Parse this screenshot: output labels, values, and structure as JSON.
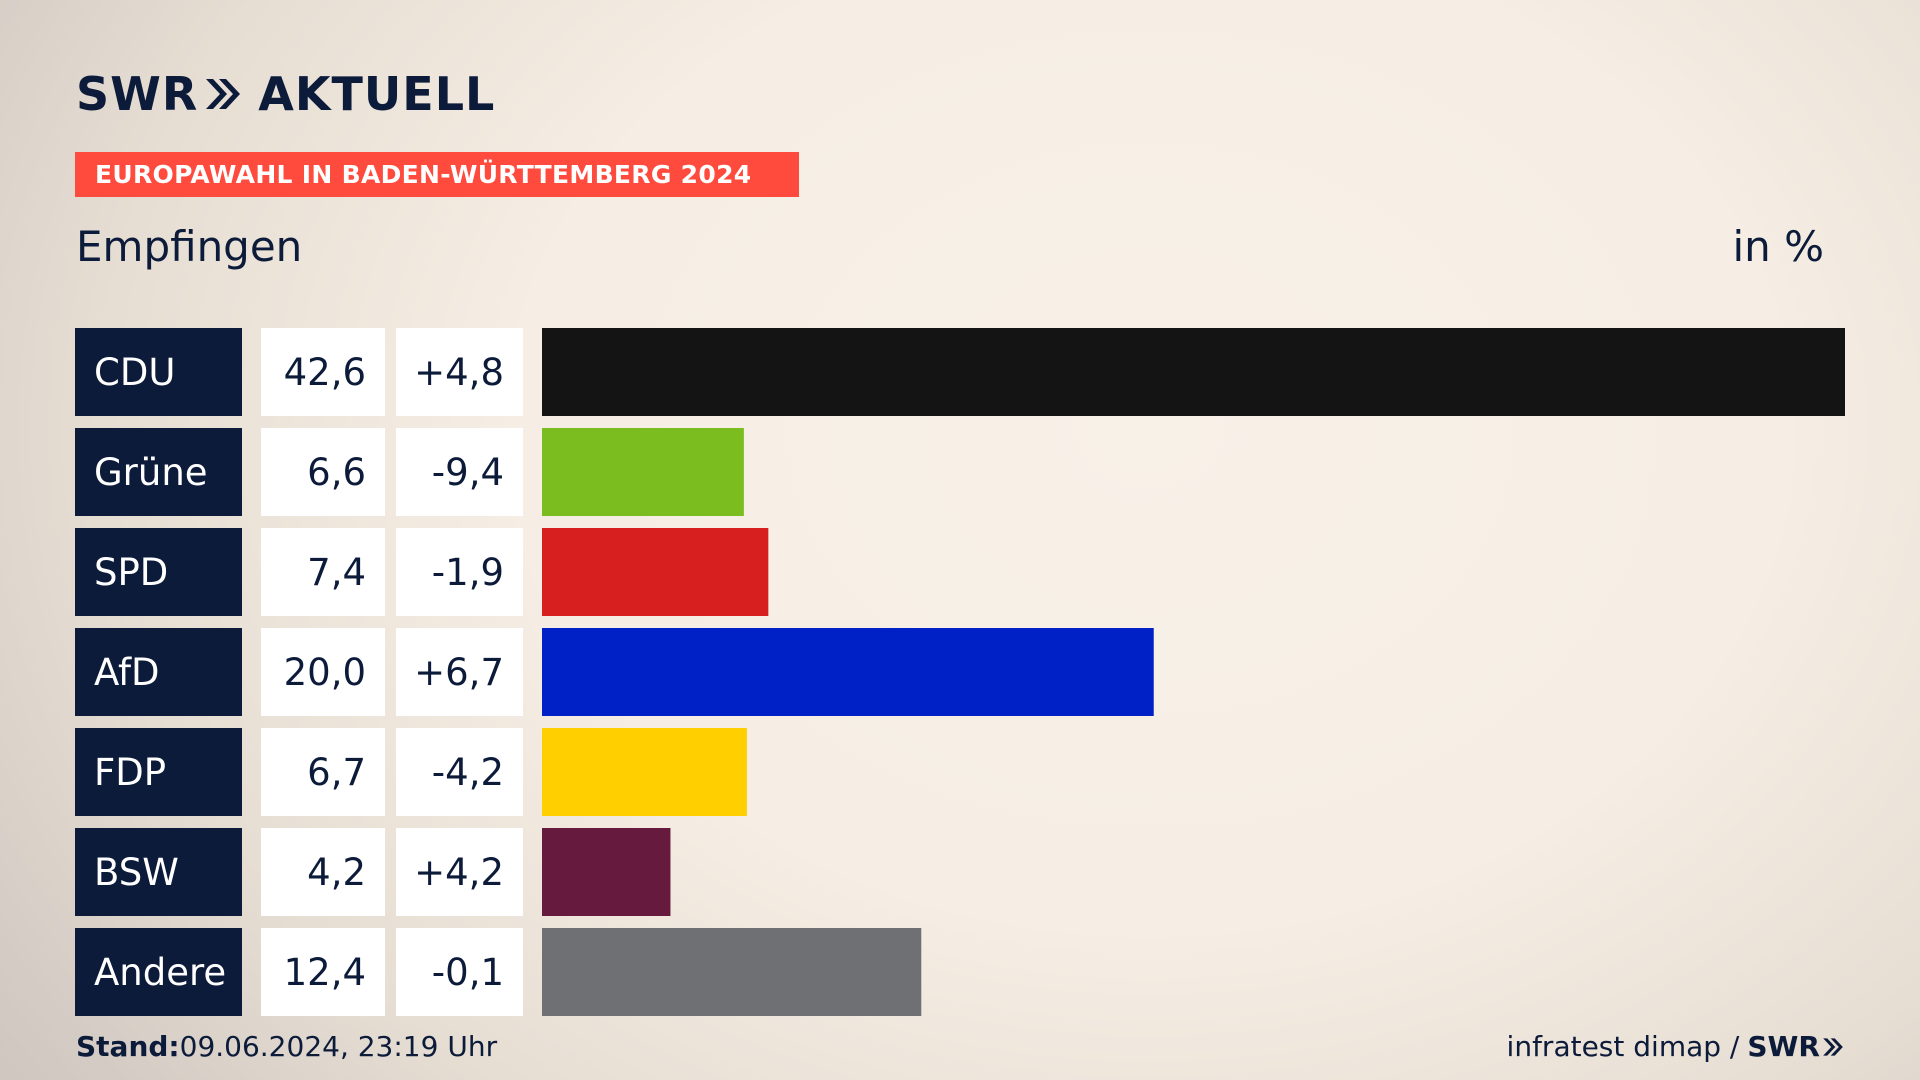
{
  "header": {
    "logo_text_1": "SWR",
    "logo_text_2": "AKTUELL",
    "banner": "EUROPAWAHL IN BADEN-WÜRTTEMBERG 2024",
    "place": "Empfingen",
    "unit": "in %"
  },
  "footer": {
    "stand_label": "Stand:",
    "stand_value": "09.06.2024, 23:19 Uhr",
    "source": "infratest dimap /",
    "source_logo": "SWR"
  },
  "colors": {
    "label_bg": "#0d1b3a",
    "cell_bg": "#ffffff",
    "banner": "#ff4a3e"
  },
  "chart_data": {
    "type": "bar",
    "orientation": "horizontal",
    "categories": [
      "CDU",
      "Grüne",
      "SPD",
      "AfD",
      "FDP",
      "BSW",
      "Andere"
    ],
    "values": [
      42.6,
      6.6,
      7.4,
      20.0,
      6.7,
      4.2,
      12.4
    ],
    "value_labels": [
      "42,6",
      "6,6",
      "7,4",
      "20,0",
      "6,7",
      "4,2",
      "12,4"
    ],
    "change_labels": [
      "+4,8",
      "-9,4",
      "-1,9",
      "+6,7",
      "-4,2",
      "+4,2",
      "-0,1"
    ],
    "colors": [
      "#141414",
      "#7bbd1e",
      "#d71f1f",
      "#0021c6",
      "#ffcf00",
      "#661a3d",
      "#6f7073"
    ],
    "xlim": [
      0,
      42.6
    ]
  }
}
